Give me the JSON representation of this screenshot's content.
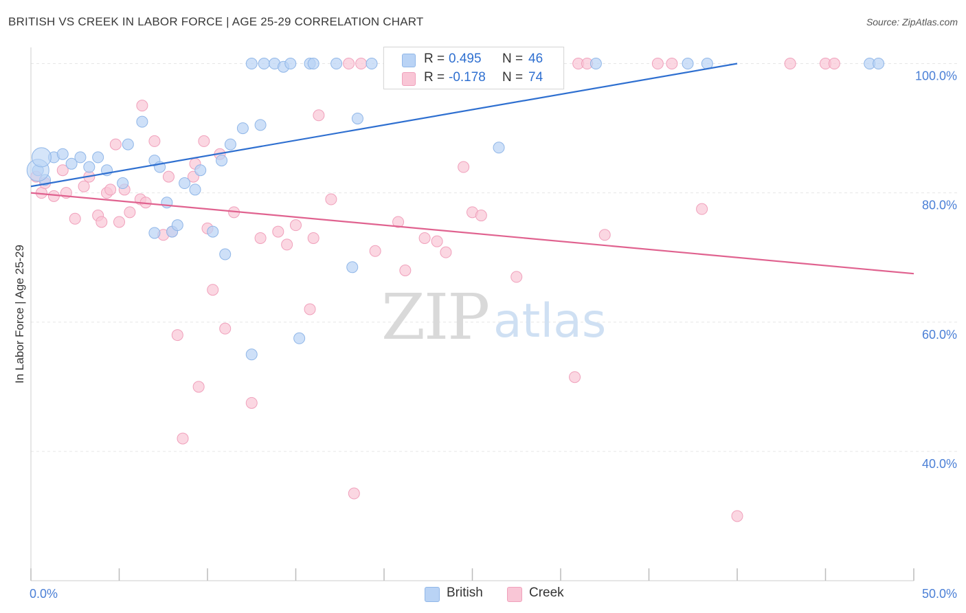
{
  "header": {
    "title": "BRITISH VS CREEK IN LABOR FORCE | AGE 25-29 CORRELATION CHART",
    "source": "Source: ZipAtlas.com"
  },
  "watermark": {
    "zip": "ZIP",
    "atlas": "atlas"
  },
  "legend": {
    "british": {
      "r_label": "R =",
      "r_value": "0.495",
      "n_label": "N =",
      "n_value": "46"
    },
    "creek": {
      "r_label": "R =",
      "r_value": "-0.178",
      "n_label": "N =",
      "n_value": "74"
    }
  },
  "bottom_legend": {
    "british": "British",
    "creek": "Creek"
  },
  "colors": {
    "british_fill": "#b9d3f5",
    "british_stroke": "#8fb6e8",
    "british_line": "#2e6fd0",
    "creek_fill": "#f9c6d6",
    "creek_stroke": "#f0a0bb",
    "creek_line": "#e0628f",
    "axis_text": "#4a7fd6"
  },
  "chart_data": {
    "type": "scatter",
    "title": "BRITISH VS CREEK IN LABOR FORCE | AGE 25-29 CORRELATION CHART",
    "xlabel": "",
    "ylabel": "In Labor Force | Age 25-29",
    "xlim": [
      0,
      50
    ],
    "ylim": [
      20,
      102.5
    ],
    "x_tick_labels": [
      "0.0%",
      "50.0%"
    ],
    "y_ticks": [
      40,
      60,
      80,
      100
    ],
    "y_tick_labels": [
      "40.0%",
      "60.0%",
      "80.0%",
      "100.0%"
    ],
    "grid": true,
    "legend_placement": "top-center",
    "series": [
      {
        "name": "British",
        "x": [
          0.4,
          0.8,
          1.3,
          1.8,
          2.3,
          2.8,
          3.3,
          3.8,
          4.3,
          5.2,
          5.5,
          6.3,
          7.0,
          7.0,
          7.7,
          8.0,
          7.3,
          8.3,
          8.7,
          9.3,
          9.6,
          10.3,
          10.8,
          11.3,
          11.0,
          12.0,
          12.5,
          12.5,
          13.0,
          13.2,
          13.8,
          14.3,
          14.7,
          15.2,
          15.8,
          16.0,
          17.3,
          18.2,
          18.5,
          19.3,
          26.5,
          32.0,
          37.2,
          38.3,
          47.5,
          48.0
        ],
        "y": [
          83.5,
          82.0,
          85.5,
          86.0,
          84.5,
          85.5,
          84.0,
          85.5,
          83.5,
          81.5,
          87.5,
          91.0,
          85.0,
          73.8,
          78.5,
          74.0,
          84.0,
          75.0,
          81.5,
          80.5,
          83.5,
          74.0,
          85.0,
          87.5,
          70.5,
          90.0,
          55.0,
          100.0,
          90.5,
          100.0,
          100.0,
          99.5,
          100.0,
          57.5,
          100.0,
          100.0,
          100.0,
          68.5,
          91.5,
          100.0,
          87.0,
          100.0,
          100.0,
          100.0,
          100.0,
          100.0
        ]
      },
      {
        "name": "Creek",
        "x": [
          0.3,
          0.6,
          0.8,
          1.3,
          1.8,
          2.0,
          2.5,
          3.0,
          3.3,
          3.8,
          4.0,
          4.3,
          4.5,
          5.0,
          4.8,
          5.3,
          5.6,
          6.2,
          6.3,
          6.5,
          7.0,
          7.5,
          8.0,
          7.8,
          8.3,
          8.6,
          9.2,
          9.5,
          9.8,
          10.0,
          9.3,
          10.3,
          10.7,
          11.0,
          11.5,
          12.5,
          13.0,
          14.5,
          14.0,
          15.0,
          15.8,
          16.0,
          16.3,
          17.0,
          18.0,
          18.3,
          18.7,
          19.5,
          20.8,
          21.2,
          22.3,
          23.0,
          23.5,
          24.0,
          24.5,
          25.0,
          25.5,
          25.8,
          26.0,
          27.5,
          27.5,
          28.0,
          29.0,
          30.8,
          31.0,
          31.5,
          32.5,
          35.5,
          36.3,
          38.0,
          40.0,
          43.0,
          45.0,
          45.5
        ],
        "y": [
          82.5,
          80.0,
          81.5,
          79.5,
          83.5,
          80.0,
          76.0,
          81.0,
          82.5,
          76.5,
          75.5,
          80.0,
          80.5,
          75.5,
          87.5,
          80.5,
          77.0,
          79.0,
          93.5,
          78.5,
          88.0,
          73.5,
          74.0,
          82.5,
          58.0,
          42.0,
          82.5,
          50.0,
          88.0,
          74.5,
          84.5,
          65.0,
          86.0,
          59.0,
          77.0,
          47.5,
          73.0,
          72.0,
          74.0,
          75.0,
          62.0,
          73.0,
          92.0,
          79.0,
          100.0,
          33.5,
          100.0,
          71.0,
          75.5,
          68.0,
          73.0,
          72.5,
          70.8,
          100.0,
          84.0,
          77.0,
          76.5,
          100.0,
          100.0,
          67.0,
          100.0,
          100.0,
          100.0,
          51.5,
          100.0,
          100.0,
          73.5,
          100.0,
          100.0,
          77.5,
          30.0,
          100.0,
          100.0,
          100.0
        ]
      }
    ],
    "trendlines": [
      {
        "name": "British",
        "x": [
          0,
          40.0
        ],
        "y": [
          81.0,
          100.0
        ]
      },
      {
        "name": "Creek",
        "x": [
          0,
          50
        ],
        "y": [
          80.0,
          67.5
        ]
      }
    ]
  }
}
